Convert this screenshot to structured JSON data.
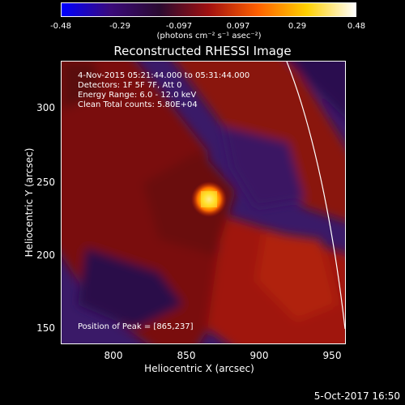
{
  "colorbar": {
    "ticks": [
      "-0.48",
      "-0.29",
      "-0.097",
      "0.097",
      "0.29",
      "0.48"
    ],
    "unit_label": "(photons cm⁻² s⁻¹ asec⁻²)",
    "colors": [
      "#0000ff",
      "#3a0a7a",
      "#2a0a30",
      "#a01010",
      "#ff6000",
      "#ffd000",
      "#ffffff"
    ]
  },
  "title": "Reconstructed RHESSI Image",
  "info": {
    "line1": "4-Nov-2015 05:21:44.000 to 05:31:44.000",
    "line2": "Detectors: 1F 5F 7F, Att 0",
    "line3": "Energy Range: 6.0 - 12.0 keV",
    "line4": "Clean      Total counts: 5.80E+04",
    "peak": "Position of Peak = [865,237]"
  },
  "axes": {
    "xlabel": "Heliocentric X (arcsec)",
    "ylabel": "Heliocentric Y (arcsec)",
    "xticks": [
      "800",
      "850",
      "900",
      "950"
    ],
    "yticks": [
      "300",
      "250",
      "200",
      "150"
    ]
  },
  "footer": {
    "date": "5-Oct-2017 16:50"
  }
}
